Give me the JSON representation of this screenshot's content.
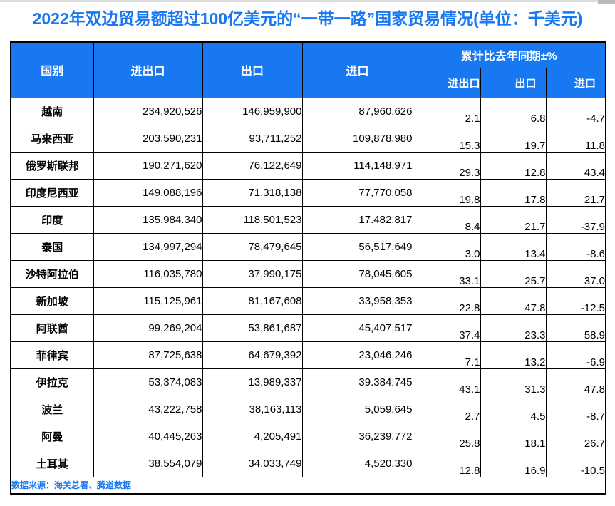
{
  "colors": {
    "accent_blue": "#1778F2",
    "header_bg": "#1778F2",
    "header_text": "#FFFFFF",
    "body_text": "#000000",
    "border": "#000000",
    "scrollbar_grey": "#B9B9B9"
  },
  "chart_data": {
    "type": "table",
    "title": "2022年双边贸易额超过100亿美元的“一带一路”国家贸易情况(单位：千美元)",
    "source": "数据来源：海关总署、腾道数据",
    "headers": {
      "country": "国别",
      "total": "进出口",
      "export": "出口",
      "import": "进口",
      "yoy_group": "累计比去年同期±%",
      "yoy_total": "进出口",
      "yoy_export": "出口",
      "yoy_import": "进口"
    },
    "rows": [
      {
        "country": "越南",
        "total": "234,920,526",
        "export": "146,959,900",
        "import": "87,960,626",
        "yoy_total": "2.1",
        "yoy_export": "6.8",
        "yoy_import": "-4.7"
      },
      {
        "country": "马来西亚",
        "total": "203,590,231",
        "export": "93,711,252",
        "import": "109,878,980",
        "yoy_total": "15.3",
        "yoy_export": "19.7",
        "yoy_import": "11.8"
      },
      {
        "country": "俄罗斯联邦",
        "total": "190,271,620",
        "export": "76,122,649",
        "import": "114,148,971",
        "yoy_total": "29.3",
        "yoy_export": "12.8",
        "yoy_import": "43.4"
      },
      {
        "country": "印度尼西亚",
        "total": "149,088,196",
        "export": "71,318,138",
        "import": "77,770,058",
        "yoy_total": "19.8",
        "yoy_export": "17.8",
        "yoy_import": "21.7"
      },
      {
        "country": "印度",
        "total": "135.984.340",
        "export": "118.501,523",
        "import": "17.482.817",
        "yoy_total": "8.4",
        "yoy_export": "21.7",
        "yoy_import": "-37.9"
      },
      {
        "country": "泰国",
        "total": "134,997,294",
        "export": "78,479,645",
        "import": "56,517,649",
        "yoy_total": "3.0",
        "yoy_export": "13.4",
        "yoy_import": "-8.6"
      },
      {
        "country": "沙特阿拉伯",
        "total": "116,035,780",
        "export": "37,990,175",
        "import": "78,045,605",
        "yoy_total": "33.1",
        "yoy_export": "25.7",
        "yoy_import": "37.0"
      },
      {
        "country": "新加坡",
        "total": "115,125,961",
        "export": "81,167,608",
        "import": "33,958,353",
        "yoy_total": "22.8",
        "yoy_export": "47.8",
        "yoy_import": "-12.5"
      },
      {
        "country": "阿联酋",
        "total": "99,269,204",
        "export": "53,861,687",
        "import": "45,407,517",
        "yoy_total": "37.4",
        "yoy_export": "23.3",
        "yoy_import": "58.9"
      },
      {
        "country": "菲律宾",
        "total": "87,725,638",
        "export": "64,679,392",
        "import": "23,046,246",
        "yoy_total": "7.1",
        "yoy_export": "13.2",
        "yoy_import": "-6.9"
      },
      {
        "country": "伊拉克",
        "total": "53,374,083",
        "export": "13,989,337",
        "import": "39.384,745",
        "yoy_total": "43.1",
        "yoy_export": "31.3",
        "yoy_import": "47.8"
      },
      {
        "country": "波兰",
        "total": "43,222,758",
        "export": "38,163,113",
        "import": "5,059,645",
        "yoy_total": "2.7",
        "yoy_export": "4.5",
        "yoy_import": "-8.7"
      },
      {
        "country": "阿曼",
        "total": "40,445,263",
        "export": "4,205,491",
        "import": "36,239.772",
        "yoy_total": "25.8",
        "yoy_export": "18.1",
        "yoy_import": "26.7"
      },
      {
        "country": "土耳其",
        "total": "38,554,079",
        "export": "34,033,749",
        "import": "4,520,330",
        "yoy_total": "12.8",
        "yoy_export": "16.9",
        "yoy_import": "-10.5"
      }
    ]
  }
}
